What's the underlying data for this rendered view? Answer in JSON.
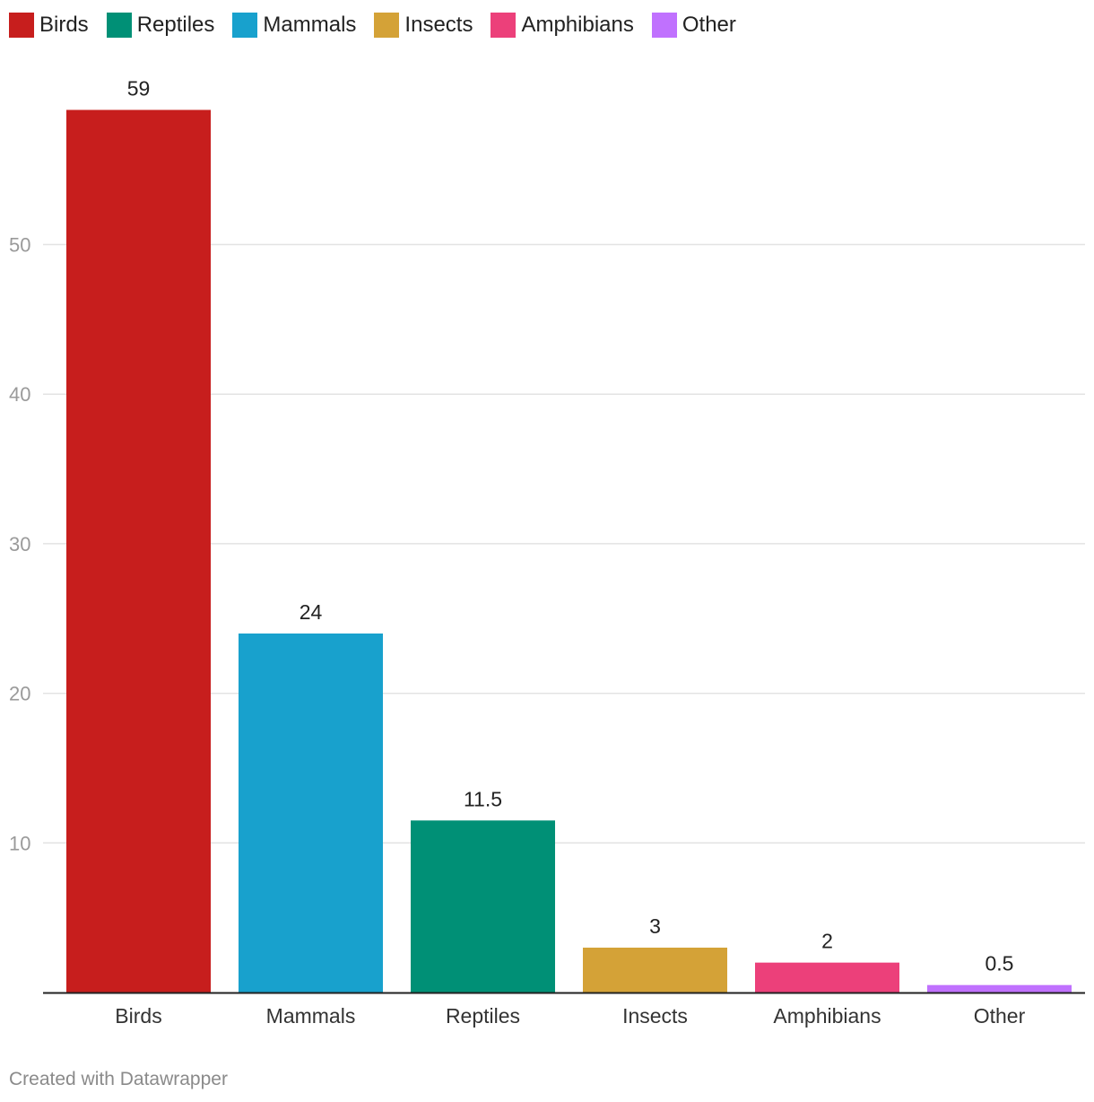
{
  "legend": [
    {
      "label": "Birds",
      "color": "#c71e1d"
    },
    {
      "label": "Reptiles",
      "color": "#009076"
    },
    {
      "label": "Mammals",
      "color": "#18a1cd"
    },
    {
      "label": "Insects",
      "color": "#d4a237"
    },
    {
      "label": "Amphibians",
      "color": "#ec407a"
    },
    {
      "label": "Other",
      "color": "#c071fe"
    }
  ],
  "chart_data": {
    "type": "bar",
    "title": "",
    "xlabel": "",
    "ylabel": "",
    "categories": [
      "Birds",
      "Mammals",
      "Reptiles",
      "Insects",
      "Amphibians",
      "Other"
    ],
    "values": [
      59,
      24,
      11.5,
      3,
      2,
      0.5
    ],
    "value_labels": [
      "59",
      "24",
      "11.5",
      "3",
      "2",
      "0.5"
    ],
    "colors": [
      "#c71e1d",
      "#18a1cd",
      "#009076",
      "#d4a237",
      "#ec407a",
      "#c071fe"
    ],
    "yticks": [
      10,
      20,
      30,
      40,
      50
    ],
    "ylim": [
      0,
      60
    ],
    "grid": true,
    "legend_position": "top-left"
  },
  "footer": {
    "credit": "Created with Datawrapper"
  }
}
